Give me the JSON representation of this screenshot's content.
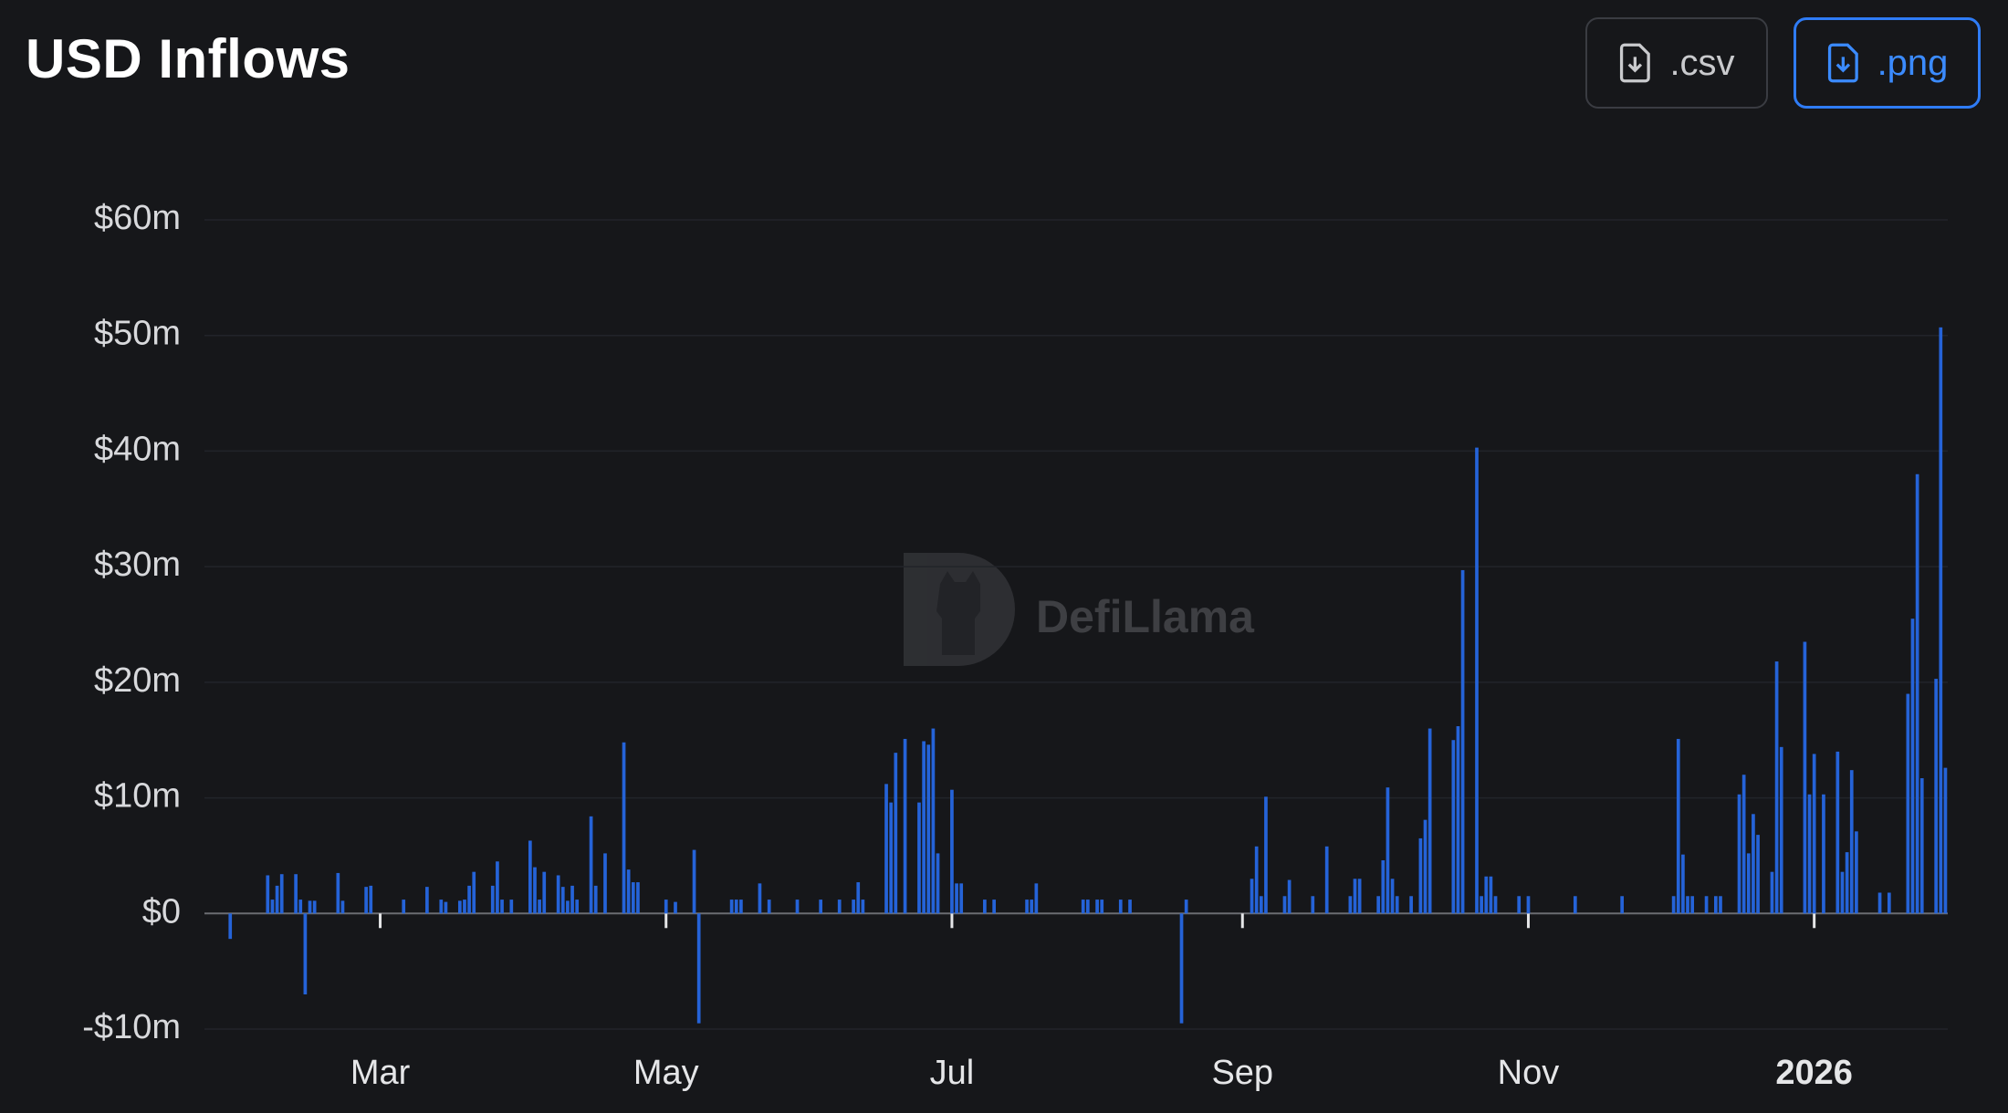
{
  "header": {
    "title": "USD Inflows",
    "buttons": [
      ".csv",
      ".png"
    ]
  },
  "chart_data": {
    "type": "bar",
    "watermark": "DefiLlama",
    "color": "#2563d8",
    "grid": true,
    "ylim": [
      -10,
      60
    ],
    "yticks": [
      {
        "value": -10,
        "label": "-$10m"
      },
      {
        "value": 0,
        "label": "$0"
      },
      {
        "value": 10,
        "label": "$10m"
      },
      {
        "value": 20,
        "label": "$20m"
      },
      {
        "value": 30,
        "label": "$30m"
      },
      {
        "value": 40,
        "label": "$40m"
      },
      {
        "value": 50,
        "label": "$50m"
      },
      {
        "value": 60,
        "label": "$60m"
      }
    ],
    "categories": [
      null,
      null,
      null,
      null,
      null,
      null,
      null,
      null,
      null,
      null,
      null,
      null,
      null,
      null,
      null,
      null,
      null,
      null,
      null,
      null,
      null,
      null,
      null,
      null,
      null,
      null,
      null,
      null,
      null,
      null,
      null,
      null,
      null,
      null,
      null,
      null,
      null,
      "Mar",
      null,
      null,
      null,
      null,
      null,
      null,
      null,
      null,
      null,
      null,
      null,
      null,
      null,
      null,
      null,
      null,
      null,
      null,
      null,
      null,
      null,
      null,
      null,
      null,
      null,
      null,
      null,
      null,
      null,
      null,
      null,
      null,
      null,
      null,
      null,
      null,
      null,
      null,
      null,
      null,
      null,
      null,
      null,
      null,
      null,
      null,
      null,
      null,
      null,
      null,
      null,
      null,
      null,
      null,
      null,
      null,
      null,
      null,
      null,
      null,
      "May",
      null,
      null,
      null,
      null,
      null,
      null,
      null,
      null,
      null,
      null,
      null,
      null,
      null,
      null,
      null,
      null,
      null,
      null,
      null,
      null,
      null,
      null,
      null,
      null,
      null,
      null,
      null,
      null,
      null,
      null,
      null,
      null,
      null,
      null,
      null,
      null,
      null,
      null,
      null,
      null,
      null,
      null,
      null,
      null,
      null,
      null,
      null,
      null,
      null,
      null,
      null,
      null,
      null,
      null,
      null,
      null,
      null,
      null,
      null,
      null,
      "Jul",
      null,
      null,
      null,
      null,
      null,
      null,
      null,
      null,
      null,
      null,
      null,
      null,
      null,
      null,
      null,
      null,
      null,
      null,
      null,
      null,
      null,
      null,
      null,
      null,
      null,
      null,
      null,
      null,
      null,
      null,
      null,
      null,
      null,
      null,
      null,
      null,
      null,
      null,
      null,
      null,
      null,
      null,
      null,
      null,
      null,
      null,
      null,
      null,
      null,
      null,
      null,
      null,
      null,
      null,
      null,
      null,
      null,
      null,
      null,
      null,
      null,
      "Sep",
      null,
      null,
      null,
      null,
      null,
      null,
      null,
      null,
      null,
      null,
      null,
      null,
      null,
      null,
      null,
      null,
      null,
      null,
      null,
      null,
      null,
      null,
      null,
      null,
      null,
      null,
      null,
      null,
      null,
      null,
      null,
      null,
      null,
      null,
      null,
      null,
      null,
      null,
      null,
      null,
      null,
      null,
      null,
      null,
      null,
      null,
      null,
      null,
      null,
      null,
      null,
      null,
      null,
      null,
      null,
      null,
      null,
      null,
      null,
      null,
      "Nov",
      null,
      null,
      null,
      null,
      null,
      null,
      null,
      null,
      null,
      null,
      null,
      null,
      null,
      null,
      null,
      null,
      null,
      null,
      null,
      null,
      null,
      null,
      null,
      null,
      null,
      null,
      null,
      null,
      null,
      null,
      null,
      null,
      null,
      null,
      null,
      null,
      null,
      null,
      null,
      null,
      null,
      null,
      null,
      null,
      null,
      null,
      null,
      null,
      null,
      null,
      null,
      null,
      null,
      null,
      null,
      null,
      null,
      null,
      null,
      null,
      "2026",
      null,
      null,
      null,
      null,
      null,
      null,
      null,
      null,
      null,
      null,
      null,
      null,
      null,
      null,
      null,
      null,
      null,
      null,
      null,
      null,
      null,
      null,
      null,
      null,
      null,
      null,
      null,
      null
    ],
    "values": [
      0,
      0,
      0,
      0,
      0,
      -2.2,
      0,
      0,
      0,
      0,
      0,
      0,
      0,
      3.3,
      1.2,
      2.4,
      3.4,
      0,
      0,
      3.4,
      1.2,
      -7,
      1.1,
      1.1,
      0,
      0,
      0,
      0,
      3.5,
      1.1,
      0,
      0,
      0,
      0,
      2.3,
      2.4,
      0,
      0,
      0,
      0,
      0,
      0,
      1.2,
      0,
      0,
      0,
      0,
      2.3,
      0,
      0,
      1.2,
      1,
      0,
      0,
      1.1,
      1.2,
      2.4,
      3.6,
      0,
      0,
      0,
      2.4,
      4.5,
      1.2,
      0,
      1.2,
      0,
      0,
      0,
      6.3,
      4,
      1.2,
      3.6,
      0,
      0,
      3.3,
      2.3,
      1.1,
      2.4,
      1.2,
      0,
      0,
      8.4,
      2.4,
      0,
      5.2,
      0,
      0,
      0,
      14.8,
      3.8,
      2.7,
      2.7,
      0,
      0,
      0,
      0,
      0,
      1.2,
      0,
      1,
      0,
      0,
      0,
      5.5,
      -9.5,
      0,
      0,
      0,
      0,
      0,
      0,
      1.2,
      1.2,
      1.2,
      0,
      0,
      0,
      2.6,
      0,
      1.2,
      0,
      0,
      0,
      0,
      0,
      1.2,
      0,
      0,
      0,
      0,
      1.2,
      0,
      0,
      0,
      1.2,
      0,
      0,
      1.2,
      2.7,
      1.2,
      0,
      0,
      0,
      0,
      11.2,
      9.6,
      13.9,
      0,
      15.1,
      0,
      0,
      9.6,
      14.9,
      14.6,
      16,
      5.2,
      0,
      0,
      10.7,
      2.6,
      2.6,
      0,
      0,
      0,
      0,
      1.2,
      0,
      1.2,
      0,
      0,
      0,
      0,
      0,
      0,
      1.2,
      1.2,
      2.6,
      0,
      0,
      0,
      0,
      0,
      0,
      0,
      0,
      0,
      1.2,
      1.2,
      0,
      1.2,
      1.2,
      0,
      0,
      0,
      1.2,
      0,
      1.2,
      0,
      0,
      0,
      0,
      0,
      0,
      0,
      0,
      0,
      0,
      -9.5,
      1.2,
      0,
      0,
      0,
      0,
      0,
      0,
      0,
      0,
      0,
      0,
      0,
      0,
      0,
      3,
      5.8,
      1.5,
      10.1,
      0,
      0,
      0,
      1.5,
      2.9,
      0,
      0,
      0,
      0,
      1.5,
      0,
      0,
      5.8,
      0,
      0,
      0,
      0,
      1.5,
      3,
      3,
      0,
      0,
      0,
      1.5,
      4.6,
      10.9,
      3,
      1.5,
      0,
      0,
      1.5,
      0,
      6.5,
      8.1,
      16,
      0,
      0,
      0,
      0,
      15,
      16.2,
      29.7,
      0,
      0,
      40.3,
      1.5,
      3.2,
      3.2,
      1.5,
      0,
      0,
      0,
      0,
      1.5,
      0,
      1.5,
      0,
      0,
      0,
      0,
      0,
      0,
      0,
      0,
      0,
      1.5,
      0,
      0,
      0,
      0,
      0,
      0,
      0,
      0,
      0,
      1.5,
      0,
      0,
      0,
      0,
      0,
      0,
      0,
      0,
      0,
      0,
      1.5,
      15.1,
      5.1,
      1.5,
      1.5,
      0,
      0,
      1.5,
      0,
      1.5,
      1.5,
      0,
      0,
      0,
      10.3,
      12,
      5.2,
      8.6,
      6.8,
      0,
      0,
      3.6,
      21.8,
      14.4,
      0,
      0,
      0,
      0,
      23.5,
      10.3,
      13.8,
      0,
      10.3,
      0,
      0,
      14,
      3.6,
      5.3,
      12.4,
      7.1,
      0,
      0,
      0,
      0,
      1.8,
      0,
      1.8,
      0,
      0,
      0,
      19,
      25.5,
      38,
      11.7,
      0,
      0,
      20.3,
      50.7,
      12.6
    ]
  }
}
